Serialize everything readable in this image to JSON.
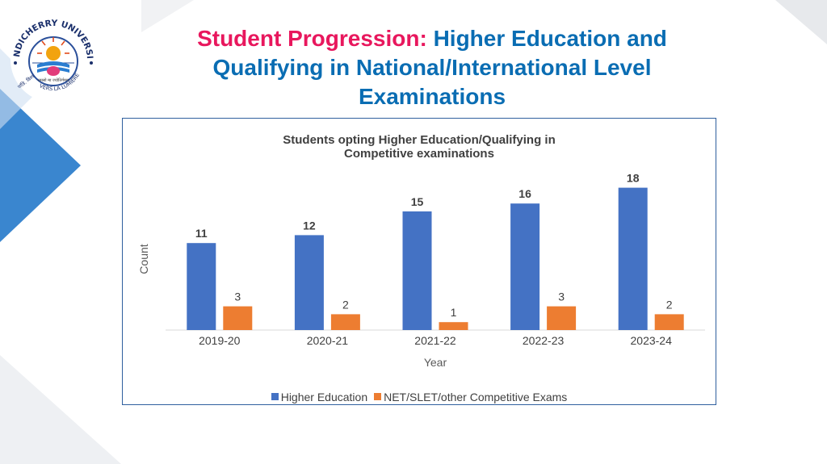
{
  "slide": {
    "title_accent": "Student Progression:",
    "title_rest": "Higher Education and Qualifying in National/International Level Examinations"
  },
  "logo": {
    "name": "PONDICHERRY UNIVERSITY",
    "motto": "VERS LA LUMIERE",
    "hindi_text": "तमसो मा ज्योतिर्गमय",
    "left_text": "पांडि. विश्व"
  },
  "colors": {
    "accent_pink": "#e8175d",
    "title_blue": "#0a6db3",
    "series_higher": "#4472c4",
    "series_net": "#ed7d31",
    "deco_blue": "#3a86cf"
  },
  "chart_data": {
    "type": "bar",
    "title": "Students opting Higher Education/Qualifying in Competitive examinations",
    "xlabel": "Year",
    "ylabel": "Count",
    "categories": [
      "2019-20",
      "2020-21",
      "2021-22",
      "2022-23",
      "2023-24"
    ],
    "series": [
      {
        "name": "Higher Education",
        "values": [
          11,
          12,
          15,
          16,
          18
        ],
        "color": "#4472c4"
      },
      {
        "name": "NET/SLET/other Competitive Exams",
        "values": [
          3,
          2,
          1,
          3,
          2
        ],
        "color": "#ed7d31"
      }
    ],
    "ylim": [
      0,
      20
    ],
    "grid": false,
    "legend": "bottom",
    "data_labels": true
  }
}
